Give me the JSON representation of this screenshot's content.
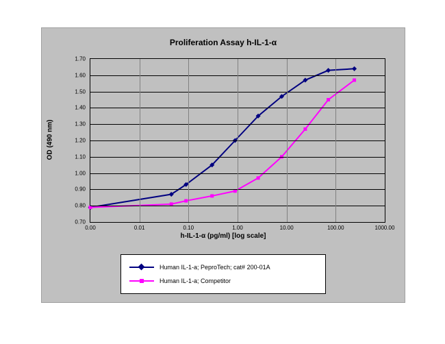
{
  "chart": {
    "type": "line",
    "title": "Proliferation Assay h-IL-1-α",
    "title_fontsize": 12,
    "title_fontweight": "bold",
    "background_color": "#ffffff",
    "panel_background": "#c0c0c0",
    "panel_border_color": "#a0a0a0",
    "plot_background": "#c0c0c0",
    "plot_border_color": "#000000",
    "y_axis": {
      "title": "OD (490 nm)",
      "min": 0.7,
      "max": 1.7,
      "tick_step": 0.1,
      "ticks": [
        "0.70",
        "0.80",
        "0.90",
        "1.00",
        "1.10",
        "1.20",
        "1.30",
        "1.40",
        "1.50",
        "1.60",
        "1.70"
      ],
      "label_fontsize": 8,
      "title_fontsize": 10,
      "title_fontweight": "bold",
      "grid_color": "#000000"
    },
    "x_axis": {
      "title": "h-IL-1-α (pg/ml) [log scale]",
      "scale": "log",
      "min_exp": -3,
      "max_exp": 3,
      "ticks_exp": [
        -3,
        -2,
        -1,
        0,
        1,
        2,
        3
      ],
      "tick_labels": [
        "0.00",
        "0.01",
        "0.10",
        "1.00",
        "10.00",
        "100.00",
        "1000.00"
      ],
      "label_fontsize": 8,
      "title_fontsize": 10,
      "title_fontweight": "bold",
      "grid_color": "#808080"
    },
    "series": [
      {
        "name": "Human IL-1-a; PeproTech; cat# 200-01A",
        "color": "#000080",
        "line_width": 2,
        "marker": "diamond",
        "marker_size": 5,
        "x_exp": [
          -3.0,
          -1.35,
          -1.05,
          -0.52,
          -0.05,
          0.42,
          0.9,
          1.38,
          1.85,
          2.38
        ],
        "y": [
          0.79,
          0.87,
          0.93,
          1.05,
          1.2,
          1.35,
          1.47,
          1.57,
          1.63,
          1.64
        ]
      },
      {
        "name": "Human IL-1-a; Competitor",
        "color": "#ff00ff",
        "line_width": 2,
        "marker": "square",
        "marker_size": 5,
        "x_exp": [
          -3.0,
          -1.35,
          -1.05,
          -0.52,
          -0.05,
          0.42,
          0.9,
          1.38,
          1.85,
          2.38
        ],
        "y": [
          0.79,
          0.81,
          0.83,
          0.86,
          0.89,
          0.97,
          1.1,
          1.27,
          1.45,
          1.57
        ]
      }
    ],
    "legend": {
      "position": "bottom",
      "background": "#ffffff",
      "border_color": "#000000",
      "fontsize": 9
    }
  }
}
